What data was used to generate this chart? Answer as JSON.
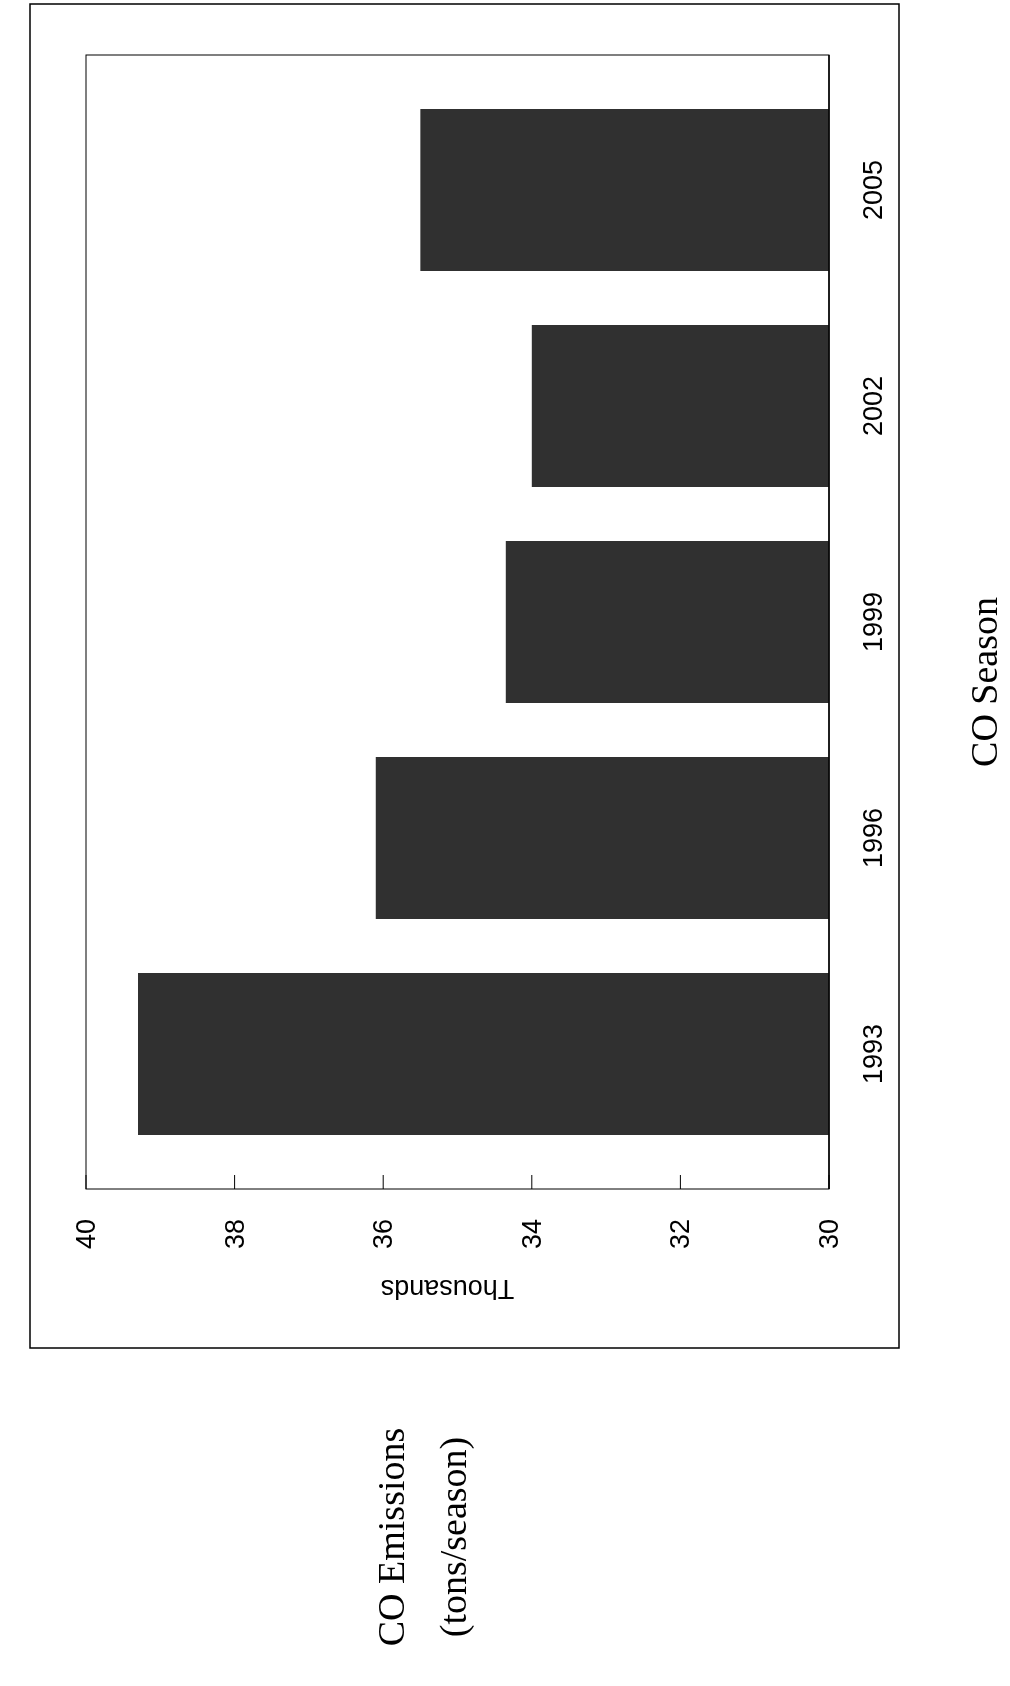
{
  "chart_data": {
    "type": "bar",
    "orientation": "horizontal",
    "categories": [
      "2005",
      "2002",
      "1999",
      "1996",
      "1993"
    ],
    "values": [
      35.5,
      34.0,
      34.35,
      36.1,
      39.3
    ],
    "color": "#303030",
    "xlim": [
      40,
      30
    ],
    "xticks": [
      40,
      38,
      36,
      34,
      32,
      30
    ],
    "ylabel": "CO Season",
    "annotations": [
      "Thousands",
      "CO Emissions (tons/season)"
    ]
  }
}
